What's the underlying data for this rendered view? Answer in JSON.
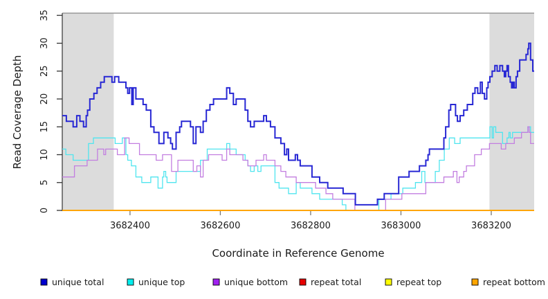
{
  "chart_data": {
    "type": "line",
    "subtype": "step-coverage-plot",
    "title": "",
    "xlabel": "Coordinate in Reference Genome",
    "ylabel": "Read Coverage Depth",
    "xlim": [
      3682250,
      3683295
    ],
    "ylim": [
      0,
      35.4
    ],
    "x_ticks": [
      3682400,
      3682600,
      3682800,
      3683000,
      3683200
    ],
    "y_ticks": [
      0,
      5,
      10,
      15,
      20,
      25,
      30,
      35
    ],
    "grid": "off",
    "legend_position": "bottom",
    "shade_color": "#dcdcdc",
    "top_border_color": "#999999",
    "axis_color": "#333333",
    "x_tick_color": "#777777",
    "y_tick_color": "#333333",
    "shaded_regions": [
      {
        "from": 3682250,
        "to": 3682364
      },
      {
        "from": 3683196,
        "to": 3683295
      }
    ],
    "series": [
      {
        "name": "repeat total",
        "color": "#cc0000",
        "width": 1.4,
        "points": [
          [
            3682250,
            0
          ],
          [
            3683295,
            0
          ]
        ]
      },
      {
        "name": "repeat top",
        "color": "#ffff00",
        "width": 1.4,
        "points": [
          [
            3682250,
            0
          ],
          [
            3683295,
            0
          ]
        ]
      },
      {
        "name": "unique top",
        "color": "#4fe5ef",
        "width": 1.3,
        "points": [
          [
            3682250,
            11
          ],
          [
            3682258,
            10
          ],
          [
            3682274,
            9
          ],
          [
            3682308,
            12
          ],
          [
            3682319,
            13
          ],
          [
            3682367,
            12
          ],
          [
            3682383,
            13
          ],
          [
            3682391,
            10
          ],
          [
            3682395,
            9
          ],
          [
            3682403,
            8
          ],
          [
            3682413,
            6
          ],
          [
            3682426,
            5
          ],
          [
            3682446,
            6
          ],
          [
            3682462,
            4
          ],
          [
            3682472,
            6
          ],
          [
            3682475,
            7
          ],
          [
            3682479,
            6
          ],
          [
            3682482,
            5
          ],
          [
            3682502,
            7
          ],
          [
            3682548,
            7
          ],
          [
            3682556,
            9
          ],
          [
            3682571,
            11
          ],
          [
            3682614,
            12
          ],
          [
            3682621,
            11
          ],
          [
            3682635,
            10
          ],
          [
            3682655,
            9
          ],
          [
            3682661,
            8
          ],
          [
            3682667,
            7
          ],
          [
            3682675,
            8
          ],
          [
            3682683,
            7
          ],
          [
            3682690,
            8
          ],
          [
            3682721,
            5
          ],
          [
            3682730,
            4
          ],
          [
            3682751,
            3
          ],
          [
            3682768,
            5
          ],
          [
            3682777,
            4
          ],
          [
            3682803,
            3
          ],
          [
            3682820,
            2
          ],
          [
            3682870,
            1
          ],
          [
            3682878,
            0
          ],
          [
            3682951,
            2
          ],
          [
            3682978,
            3
          ],
          [
            3683004,
            4
          ],
          [
            3683032,
            5
          ],
          [
            3683046,
            7
          ],
          [
            3683053,
            5
          ],
          [
            3683076,
            7
          ],
          [
            3683085,
            9
          ],
          [
            3683096,
            11
          ],
          [
            3683107,
            13
          ],
          [
            3683119,
            12
          ],
          [
            3683131,
            13
          ],
          [
            3683197,
            15
          ],
          [
            3683202,
            13
          ],
          [
            3683205,
            15
          ],
          [
            3683210,
            14
          ],
          [
            3683225,
            12
          ],
          [
            3683235,
            13
          ],
          [
            3683239,
            14
          ],
          [
            3683242,
            13
          ],
          [
            3683247,
            14
          ],
          [
            3683281,
            15
          ],
          [
            3683287,
            14
          ],
          [
            3683295,
            14
          ]
        ]
      },
      {
        "name": "unique bottom",
        "color": "#c27ee0",
        "width": 1.3,
        "points": [
          [
            3682250,
            6
          ],
          [
            3682277,
            8
          ],
          [
            3682305,
            9
          ],
          [
            3682328,
            11
          ],
          [
            3682342,
            10
          ],
          [
            3682346,
            11
          ],
          [
            3682372,
            10
          ],
          [
            3682388,
            13
          ],
          [
            3682398,
            12
          ],
          [
            3682421,
            10
          ],
          [
            3682458,
            9
          ],
          [
            3682472,
            10
          ],
          [
            3682492,
            7
          ],
          [
            3682506,
            9
          ],
          [
            3682540,
            7
          ],
          [
            3682548,
            8
          ],
          [
            3682556,
            6
          ],
          [
            3682562,
            9
          ],
          [
            3682574,
            10
          ],
          [
            3682604,
            9
          ],
          [
            3682614,
            11
          ],
          [
            3682621,
            10
          ],
          [
            3682650,
            9
          ],
          [
            3682661,
            8
          ],
          [
            3682679,
            9
          ],
          [
            3682696,
            10
          ],
          [
            3682702,
            9
          ],
          [
            3682721,
            8
          ],
          [
            3682734,
            7
          ],
          [
            3682745,
            6
          ],
          [
            3682768,
            5
          ],
          [
            3682811,
            4
          ],
          [
            3682834,
            3
          ],
          [
            3682849,
            2
          ],
          [
            3682898,
            0
          ],
          [
            3682966,
            2
          ],
          [
            3683002,
            3
          ],
          [
            3683055,
            5
          ],
          [
            3683095,
            6
          ],
          [
            3683116,
            7
          ],
          [
            3683124,
            5
          ],
          [
            3683129,
            6
          ],
          [
            3683139,
            7
          ],
          [
            3683145,
            8
          ],
          [
            3683163,
            10
          ],
          [
            3683178,
            11
          ],
          [
            3683196,
            12
          ],
          [
            3683222,
            11
          ],
          [
            3683232,
            12
          ],
          [
            3683251,
            13
          ],
          [
            3683267,
            14
          ],
          [
            3683281,
            15
          ],
          [
            3683284,
            14
          ],
          [
            3683287,
            12
          ],
          [
            3683295,
            12
          ]
        ]
      },
      {
        "name": "repeat bottom",
        "color": "#ffa500",
        "width": 2,
        "points": [
          [
            3682250,
            0
          ],
          [
            3683295,
            0
          ]
        ]
      },
      {
        "name": "unique total",
        "color": "#2727d4",
        "width": 2,
        "points": [
          [
            3682250,
            17
          ],
          [
            3682259,
            16
          ],
          [
            3682274,
            15
          ],
          [
            3682282,
            17
          ],
          [
            3682289,
            16
          ],
          [
            3682297,
            15
          ],
          [
            3682303,
            17
          ],
          [
            3682306,
            18
          ],
          [
            3682311,
            20
          ],
          [
            3682320,
            21
          ],
          [
            3682327,
            22
          ],
          [
            3682335,
            23
          ],
          [
            3682343,
            24
          ],
          [
            3682360,
            23
          ],
          [
            3682366,
            24
          ],
          [
            3682375,
            23
          ],
          [
            3682391,
            22
          ],
          [
            3682395,
            21
          ],
          [
            3682399,
            22
          ],
          [
            3682404,
            19
          ],
          [
            3682407,
            22
          ],
          [
            3682413,
            20
          ],
          [
            3682429,
            19
          ],
          [
            3682436,
            18
          ],
          [
            3682446,
            15
          ],
          [
            3682453,
            14
          ],
          [
            3682464,
            12
          ],
          [
            3682475,
            14
          ],
          [
            3682484,
            13
          ],
          [
            3682490,
            12
          ],
          [
            3682494,
            11
          ],
          [
            3682502,
            14
          ],
          [
            3682510,
            15
          ],
          [
            3682514,
            16
          ],
          [
            3682534,
            15
          ],
          [
            3682540,
            12
          ],
          [
            3682546,
            15
          ],
          [
            3682556,
            14
          ],
          [
            3682562,
            16
          ],
          [
            3682569,
            18
          ],
          [
            3682577,
            19
          ],
          [
            3682585,
            20
          ],
          [
            3682614,
            22
          ],
          [
            3682621,
            21
          ],
          [
            3682629,
            19
          ],
          [
            3682635,
            20
          ],
          [
            3682655,
            18
          ],
          [
            3682661,
            16
          ],
          [
            3682667,
            15
          ],
          [
            3682675,
            16
          ],
          [
            3682696,
            17
          ],
          [
            3682702,
            16
          ],
          [
            3682711,
            15
          ],
          [
            3682721,
            13
          ],
          [
            3682734,
            12
          ],
          [
            3682742,
            10
          ],
          [
            3682747,
            11
          ],
          [
            3682751,
            9
          ],
          [
            3682766,
            10
          ],
          [
            3682771,
            9
          ],
          [
            3682777,
            8
          ],
          [
            3682803,
            6
          ],
          [
            3682820,
            5
          ],
          [
            3682838,
            4
          ],
          [
            3682872,
            3
          ],
          [
            3682899,
            1
          ],
          [
            3682948,
            2
          ],
          [
            3682963,
            3
          ],
          [
            3682995,
            6
          ],
          [
            3683018,
            7
          ],
          [
            3683041,
            8
          ],
          [
            3683055,
            9
          ],
          [
            3683060,
            10
          ],
          [
            3683063,
            11
          ],
          [
            3683095,
            13
          ],
          [
            3683099,
            15
          ],
          [
            3683106,
            18
          ],
          [
            3683110,
            19
          ],
          [
            3683121,
            17
          ],
          [
            3683125,
            16
          ],
          [
            3683131,
            17
          ],
          [
            3683139,
            18
          ],
          [
            3683147,
            19
          ],
          [
            3683159,
            21
          ],
          [
            3683164,
            22
          ],
          [
            3683170,
            21
          ],
          [
            3683176,
            23
          ],
          [
            3683180,
            21
          ],
          [
            3683185,
            20
          ],
          [
            3683190,
            22
          ],
          [
            3683193,
            23
          ],
          [
            3683197,
            24
          ],
          [
            3683202,
            25
          ],
          [
            3683208,
            26
          ],
          [
            3683213,
            25
          ],
          [
            3683219,
            26
          ],
          [
            3683225,
            25
          ],
          [
            3683229,
            24
          ],
          [
            3683232,
            25
          ],
          [
            3683235,
            26
          ],
          [
            3683238,
            24
          ],
          [
            3683242,
            23
          ],
          [
            3683245,
            22
          ],
          [
            3683248,
            23
          ],
          [
            3683251,
            22
          ],
          [
            3683255,
            24
          ],
          [
            3683258,
            25
          ],
          [
            3683263,
            27
          ],
          [
            3683277,
            28
          ],
          [
            3683281,
            29
          ],
          [
            3683283,
            30
          ],
          [
            3683287,
            27
          ],
          [
            3683292,
            25
          ],
          [
            3683295,
            25
          ]
        ]
      }
    ]
  },
  "legend": {
    "items": [
      {
        "label": "unique total",
        "color": "#0000cd"
      },
      {
        "label": "unique top",
        "color": "#00eeee"
      },
      {
        "label": "unique bottom",
        "color": "#a020f0"
      },
      {
        "label": "repeat total",
        "color": "#e60000"
      },
      {
        "label": "repeat top",
        "color": "#ffff00"
      },
      {
        "label": "repeat bottom",
        "color": "#ffa500"
      }
    ]
  }
}
